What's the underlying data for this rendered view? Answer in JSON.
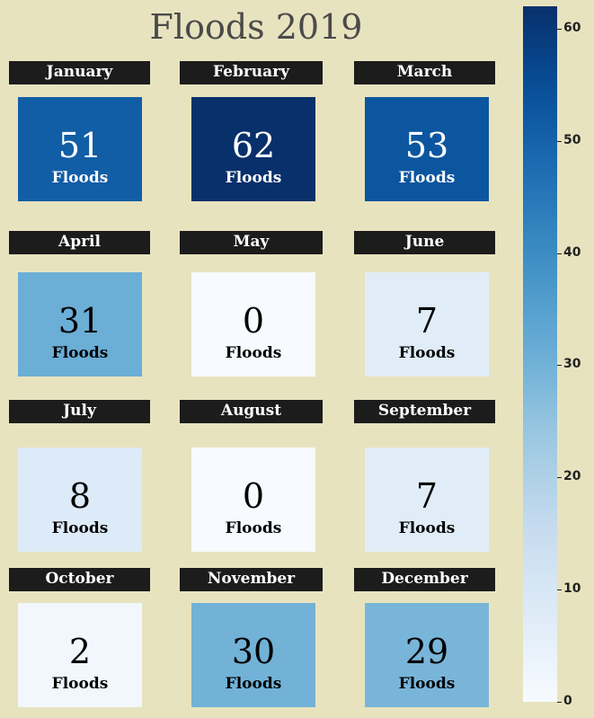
{
  "title": "Floods 2019",
  "unit_label": "Floods",
  "chart_data": {
    "type": "heatmap",
    "title": "Floods 2019",
    "categories": [
      "January",
      "February",
      "March",
      "April",
      "May",
      "June",
      "July",
      "August",
      "September",
      "October",
      "November",
      "December"
    ],
    "values": [
      51,
      62,
      53,
      31,
      0,
      7,
      8,
      0,
      7,
      2,
      30,
      29
    ],
    "colorscale": "Blues",
    "colorbar": {
      "range": [
        0,
        62
      ],
      "ticks": [
        0,
        10,
        20,
        30,
        40,
        50,
        60
      ]
    }
  }
}
